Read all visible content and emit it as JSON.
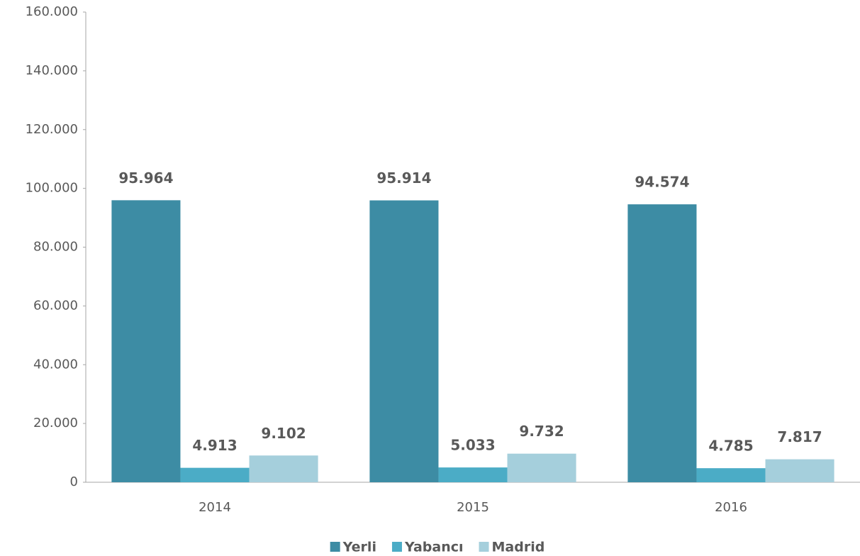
{
  "chart_data": {
    "type": "bar",
    "categories": [
      "2014",
      "2015",
      "2016"
    ],
    "series": [
      {
        "name": "Yerli",
        "color": "#3d8ca4",
        "values": [
          95964,
          95914,
          94574
        ],
        "value_labels": [
          "95.964",
          "95.914",
          "94.574"
        ]
      },
      {
        "name": "Yabancı",
        "color": "#4bacc6",
        "values": [
          4913,
          5033,
          4785
        ],
        "value_labels": [
          "4.913",
          "5.033",
          "4.785"
        ]
      },
      {
        "name": "Madrid",
        "color": "#a5cfdc",
        "values": [
          9102,
          9732,
          7817
        ],
        "value_labels": [
          "9.102",
          "9.732",
          "7.817"
        ]
      }
    ],
    "ylim": [
      0,
      160000
    ],
    "yticks": [
      0,
      {
        "value": 20000,
        "label": "20.000"
      },
      {
        "value": 40000,
        "label": "40.000"
      },
      {
        "value": 60000,
        "label": "60.000"
      },
      {
        "value": 80000,
        "label": "80.000"
      },
      {
        "value": 100000,
        "label": "100.000"
      },
      {
        "value": 120000,
        "label": "120.000"
      },
      {
        "value": 140000,
        "label": "140.000"
      },
      {
        "value": 160000,
        "label": "160.000"
      }
    ],
    "grid": false,
    "legend": "bottom"
  }
}
